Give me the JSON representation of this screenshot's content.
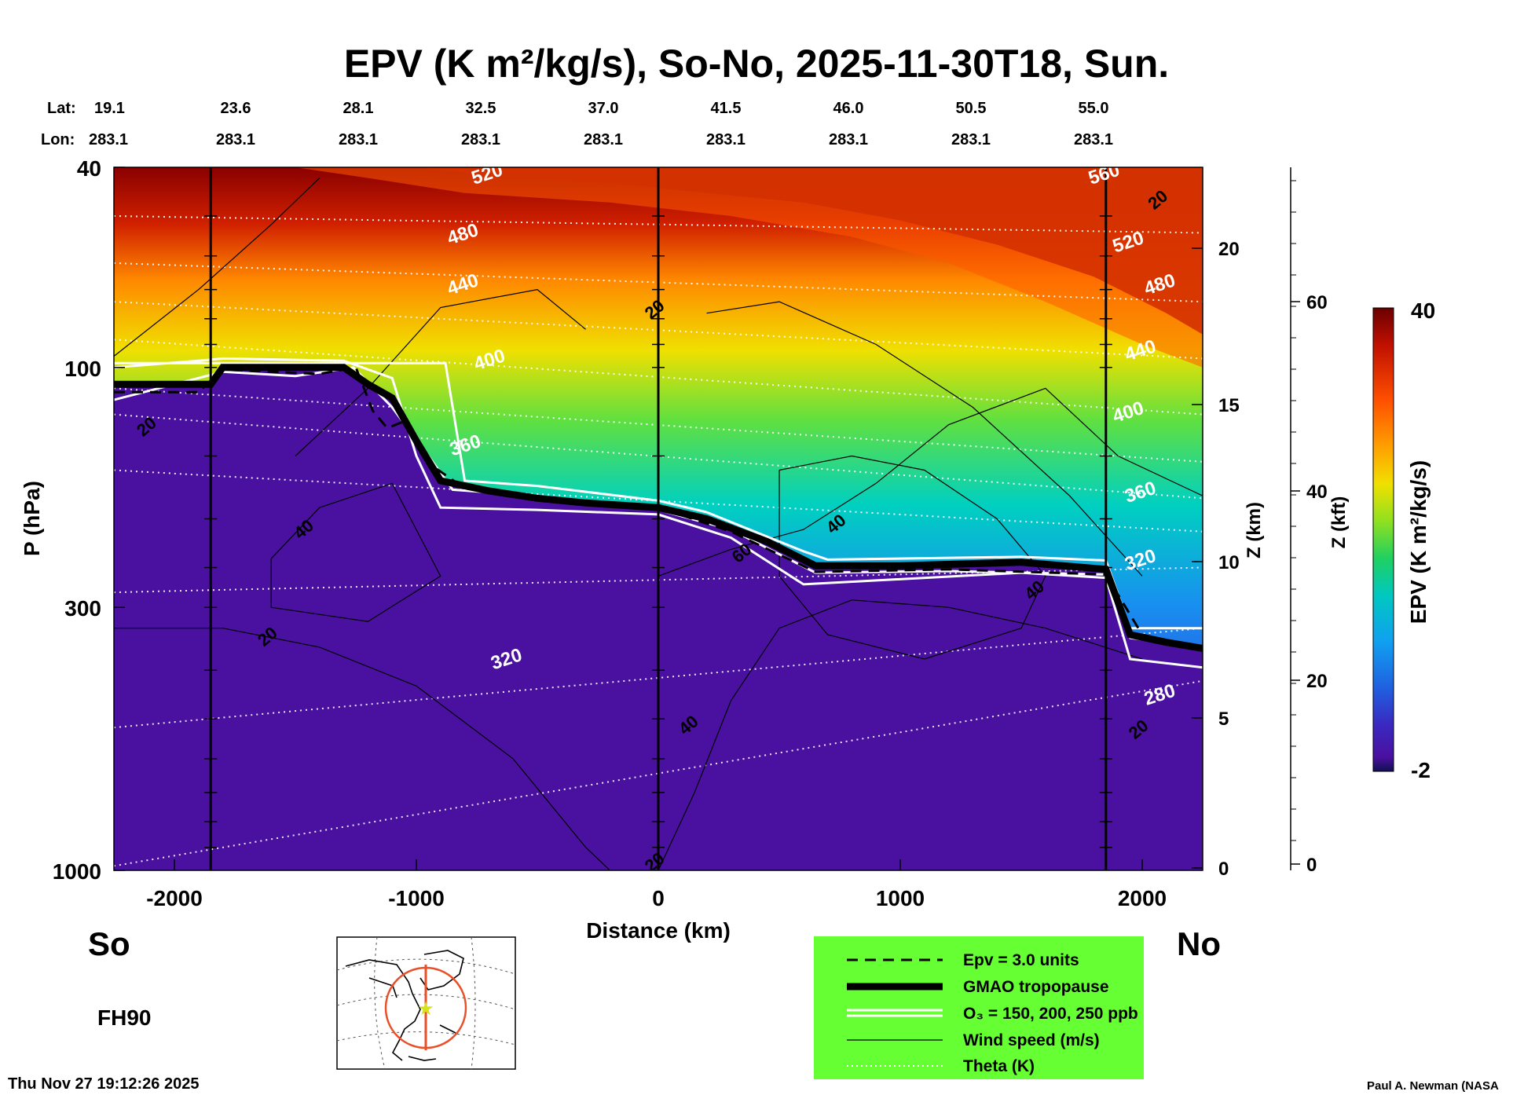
{
  "chart_data": {
    "type": "heatmap",
    "title": "EPV (K m²/kg/s), So-No, 2025-11-30T18, Sun.",
    "xlabel": "Distance (km)",
    "ylabel": "P (hPa)",
    "right_axis_z_km": "Z (km)",
    "right_axis_z_kft": "Z (kft)",
    "colorbar_label": "EPV (K m²/kg/s)",
    "colorbar_range": [
      -2,
      40
    ],
    "colorbar_ticks": [
      "40",
      "-2"
    ],
    "x_range": [
      -2250,
      2250
    ],
    "x_ticks": [
      "-2000",
      "-1000",
      "0",
      "1000",
      "2000"
    ],
    "x_tick_values": [
      -2000,
      -1000,
      0,
      1000,
      2000
    ],
    "y_range_hpa": [
      40,
      1000
    ],
    "y_scale": "log",
    "y_ticks": [
      "40",
      "100",
      "300",
      "1000"
    ],
    "y_tick_values": [
      40,
      100,
      300,
      1000
    ],
    "z_km_ticks": [
      "20",
      "15",
      "10",
      "5",
      "0"
    ],
    "z_km_values": [
      20,
      15,
      10,
      5,
      0
    ],
    "z_kft_ticks": [
      "60",
      "40",
      "20",
      "0"
    ],
    "z_kft_values": [
      60,
      40,
      20,
      0
    ],
    "lat_label": "Lat:",
    "lon_label": "Lon:",
    "lat_values": [
      "19.1",
      "23.6",
      "28.1",
      "32.5",
      "37.0",
      "41.5",
      "46.0",
      "50.5",
      "55.0"
    ],
    "lon_values": [
      "283.1",
      "283.1",
      "283.1",
      "283.1",
      "283.1",
      "283.1",
      "283.1",
      "283.1",
      "283.1"
    ],
    "vertical_marker_lines_km": [
      -1850,
      0,
      1850
    ],
    "tropopause_gmao": [
      {
        "x": -2250,
        "p": 108
      },
      {
        "x": -1850,
        "p": 108
      },
      {
        "x": -1800,
        "p": 100
      },
      {
        "x": -1500,
        "p": 100
      },
      {
        "x": -1300,
        "p": 100
      },
      {
        "x": -1200,
        "p": 108
      },
      {
        "x": -1100,
        "p": 115
      },
      {
        "x": -1000,
        "p": 140
      },
      {
        "x": -900,
        "p": 168
      },
      {
        "x": -700,
        "p": 176
      },
      {
        "x": -500,
        "p": 182
      },
      {
        "x": -300,
        "p": 186
      },
      {
        "x": 0,
        "p": 190
      },
      {
        "x": 200,
        "p": 200
      },
      {
        "x": 450,
        "p": 222
      },
      {
        "x": 650,
        "p": 248
      },
      {
        "x": 1000,
        "p": 248
      },
      {
        "x": 1500,
        "p": 244
      },
      {
        "x": 1850,
        "p": 252
      },
      {
        "x": 1950,
        "p": 340
      },
      {
        "x": 2100,
        "p": 352
      },
      {
        "x": 2250,
        "p": 362
      }
    ],
    "epv_3_units": [
      {
        "x": -2250,
        "p": 112
      },
      {
        "x": -1900,
        "p": 112
      },
      {
        "x": -1800,
        "p": 101
      },
      {
        "x": -1400,
        "p": 103
      },
      {
        "x": -1250,
        "p": 100
      },
      {
        "x": -1180,
        "p": 122
      },
      {
        "x": -1120,
        "p": 132
      },
      {
        "x": -1050,
        "p": 128
      },
      {
        "x": -950,
        "p": 155
      },
      {
        "x": -800,
        "p": 174
      },
      {
        "x": -500,
        "p": 182
      },
      {
        "x": 0,
        "p": 190
      },
      {
        "x": 300,
        "p": 212
      },
      {
        "x": 650,
        "p": 255
      },
      {
        "x": 1200,
        "p": 252
      },
      {
        "x": 1850,
        "p": 258
      },
      {
        "x": 2000,
        "p": 340
      },
      {
        "x": 2250,
        "p": 362
      }
    ],
    "ozone_contours_ppb": [
      {
        "name": "150",
        "points": [
          {
            "x": -2250,
            "p": 98
          },
          {
            "x": -880,
            "p": 98
          },
          {
            "x": -800,
            "p": 168
          },
          {
            "x": -500,
            "p": 172
          },
          {
            "x": 0,
            "p": 184
          },
          {
            "x": 200,
            "p": 194
          },
          {
            "x": 600,
            "p": 232
          },
          {
            "x": 700,
            "p": 241
          },
          {
            "x": 1500,
            "p": 238
          },
          {
            "x": 1850,
            "p": 242
          },
          {
            "x": 1950,
            "p": 330
          },
          {
            "x": 2250,
            "p": 330
          }
        ]
      },
      {
        "name": "200",
        "points": [
          {
            "x": -2250,
            "p": 116
          },
          {
            "x": -2000,
            "p": 108
          },
          {
            "x": -1800,
            "p": 102
          },
          {
            "x": -1500,
            "p": 104
          },
          {
            "x": -1260,
            "p": 100
          },
          {
            "x": -1100,
            "p": 120
          },
          {
            "x": -950,
            "p": 150
          },
          {
            "x": -850,
            "p": 175
          },
          {
            "x": -500,
            "p": 180
          },
          {
            "x": 0,
            "p": 192
          },
          {
            "x": 300,
            "p": 210
          },
          {
            "x": 650,
            "p": 256
          },
          {
            "x": 1200,
            "p": 254
          },
          {
            "x": 1850,
            "p": 258
          },
          {
            "x": 1950,
            "p": 345
          },
          {
            "x": 2250,
            "p": 360
          }
        ]
      },
      {
        "name": "250",
        "points": [
          {
            "x": -2250,
            "p": 100
          },
          {
            "x": -1900,
            "p": 97
          },
          {
            "x": -1800,
            "p": 96
          },
          {
            "x": -1300,
            "p": 97
          },
          {
            "x": -1100,
            "p": 105
          },
          {
            "x": -1000,
            "p": 150
          },
          {
            "x": -900,
            "p": 190
          },
          {
            "x": -500,
            "p": 192
          },
          {
            "x": 0,
            "p": 196
          },
          {
            "x": 300,
            "p": 218
          },
          {
            "x": 600,
            "p": 270
          },
          {
            "x": 1500,
            "p": 256
          },
          {
            "x": 1850,
            "p": 262
          },
          {
            "x": 1950,
            "p": 380
          },
          {
            "x": 2250,
            "p": 395
          }
        ]
      }
    ],
    "theta_labels_k": [
      {
        "text": "560",
        "x": 1850,
        "p": 41
      },
      {
        "text": "520",
        "x": -700,
        "p": 41
      },
      {
        "text": "520",
        "x": 1950,
        "p": 56
      },
      {
        "text": "480",
        "x": -800,
        "p": 54
      },
      {
        "text": "480",
        "x": 2080,
        "p": 68
      },
      {
        "text": "440",
        "x": -800,
        "p": 68
      },
      {
        "text": "440",
        "x": 2000,
        "p": 92
      },
      {
        "text": "400",
        "x": -690,
        "p": 96
      },
      {
        "text": "400",
        "x": 1950,
        "p": 122
      },
      {
        "text": "360",
        "x": -790,
        "p": 142
      },
      {
        "text": "360",
        "x": 2000,
        "p": 176
      },
      {
        "text": "320",
        "x": -620,
        "p": 378
      },
      {
        "text": "320",
        "x": 2000,
        "p": 240
      },
      {
        "text": "280",
        "x": 2080,
        "p": 445
      }
    ],
    "wind_speed_labels_ms": [
      {
        "text": "20",
        "x": -2100,
        "p": 130
      },
      {
        "text": "40",
        "x": -1450,
        "p": 208
      },
      {
        "text": "20",
        "x": -1600,
        "p": 340
      },
      {
        "text": "20",
        "x": 0,
        "p": 76
      },
      {
        "text": "60",
        "x": 360,
        "p": 232
      },
      {
        "text": "40",
        "x": 750,
        "p": 203
      },
      {
        "text": "40",
        "x": 140,
        "p": 510
      },
      {
        "text": "40",
        "x": 1570,
        "p": 275
      },
      {
        "text": "20",
        "x": 2080,
        "p": 46
      },
      {
        "text": "20",
        "x": 2000,
        "p": 520
      },
      {
        "text": "20",
        "x": 0,
        "p": 955
      }
    ]
  },
  "labels": {
    "south": "So",
    "north": "No",
    "forecast_hour": "FH90",
    "timestamp": "Thu Nov 27 19:12:26 2025",
    "credit": "Paul A. Newman (NASA"
  },
  "legend": {
    "background": "#66ff33",
    "items": [
      {
        "style": "dashed",
        "label": "Epv = 3.0 units"
      },
      {
        "style": "thick",
        "label": "GMAO tropopause"
      },
      {
        "style": "white-double",
        "label": "O₃ = 150, 200, 250 ppb"
      },
      {
        "style": "thin",
        "label": "Wind speed (m/s)"
      },
      {
        "style": "dotted",
        "label": "Theta (K)"
      }
    ]
  },
  "colors": {
    "troposphere_purple": "#4a10a0",
    "cross_section_line": "#e8502a",
    "map_star": "#d8e020"
  }
}
